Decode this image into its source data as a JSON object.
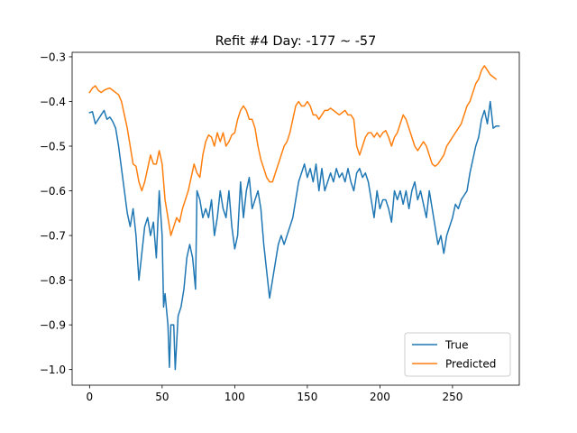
{
  "chart_data": {
    "type": "line",
    "title": "Refit #4 Day: -177 ~ -57",
    "xlabel": "",
    "ylabel": "",
    "xlim": [
      -12,
      296
    ],
    "ylim": [
      -1.035,
      -0.29
    ],
    "xticks": [
      0,
      50,
      100,
      150,
      200,
      250
    ],
    "yticks": [
      -1.0,
      -0.9,
      -0.8,
      -0.7,
      -0.6,
      -0.5,
      -0.4,
      -0.3
    ],
    "xtick_labels": [
      "0",
      "50",
      "100",
      "150",
      "200",
      "250"
    ],
    "ytick_labels": [
      "−1.0",
      "−0.9",
      "−0.8",
      "−0.7",
      "−0.6",
      "−0.5",
      "−0.4",
      "−0.3"
    ],
    "grid": false,
    "legend_position": "lower-right",
    "series": [
      {
        "name": "True",
        "color": "#1f77b4",
        "points": [
          [
            0,
            -0.425
          ],
          [
            2,
            -0.423
          ],
          [
            4,
            -0.45
          ],
          [
            6,
            -0.44
          ],
          [
            8,
            -0.43
          ],
          [
            10,
            -0.42
          ],
          [
            12,
            -0.44
          ],
          [
            14,
            -0.435
          ],
          [
            16,
            -0.445
          ],
          [
            18,
            -0.46
          ],
          [
            20,
            -0.5
          ],
          [
            22,
            -0.55
          ],
          [
            24,
            -0.6
          ],
          [
            26,
            -0.65
          ],
          [
            28,
            -0.68
          ],
          [
            30,
            -0.64
          ],
          [
            32,
            -0.7
          ],
          [
            34,
            -0.8
          ],
          [
            36,
            -0.74
          ],
          [
            38,
            -0.68
          ],
          [
            40,
            -0.66
          ],
          [
            42,
            -0.7
          ],
          [
            44,
            -0.67
          ],
          [
            46,
            -0.75
          ],
          [
            48,
            -0.6
          ],
          [
            50,
            -0.7
          ],
          [
            51,
            -0.86
          ],
          [
            52,
            -0.83
          ],
          [
            54,
            -0.9
          ],
          [
            55,
            -0.995
          ],
          [
            56,
            -0.9
          ],
          [
            58,
            -0.9
          ],
          [
            59,
            -1.0
          ],
          [
            61,
            -0.88
          ],
          [
            63,
            -0.86
          ],
          [
            65,
            -0.82
          ],
          [
            67,
            -0.75
          ],
          [
            69,
            -0.72
          ],
          [
            71,
            -0.75
          ],
          [
            73,
            -0.82
          ],
          [
            74,
            -0.6
          ],
          [
            76,
            -0.62
          ],
          [
            78,
            -0.66
          ],
          [
            80,
            -0.64
          ],
          [
            82,
            -0.66
          ],
          [
            84,
            -0.62
          ],
          [
            86,
            -0.7
          ],
          [
            88,
            -0.66
          ],
          [
            90,
            -0.6
          ],
          [
            92,
            -0.64
          ],
          [
            94,
            -0.66
          ],
          [
            96,
            -0.6
          ],
          [
            98,
            -0.68
          ],
          [
            100,
            -0.73
          ],
          [
            102,
            -0.7
          ],
          [
            104,
            -0.58
          ],
          [
            106,
            -0.66
          ],
          [
            108,
            -0.6
          ],
          [
            110,
            -0.57
          ],
          [
            112,
            -0.64
          ],
          [
            114,
            -0.62
          ],
          [
            116,
            -0.6
          ],
          [
            118,
            -0.64
          ],
          [
            120,
            -0.72
          ],
          [
            122,
            -0.78
          ],
          [
            124,
            -0.84
          ],
          [
            126,
            -0.8
          ],
          [
            128,
            -0.76
          ],
          [
            130,
            -0.72
          ],
          [
            132,
            -0.7
          ],
          [
            134,
            -0.72
          ],
          [
            136,
            -0.7
          ],
          [
            138,
            -0.68
          ],
          [
            140,
            -0.66
          ],
          [
            142,
            -0.62
          ],
          [
            144,
            -0.58
          ],
          [
            146,
            -0.56
          ],
          [
            148,
            -0.54
          ],
          [
            150,
            -0.57
          ],
          [
            152,
            -0.55
          ],
          [
            154,
            -0.58
          ],
          [
            156,
            -0.54
          ],
          [
            158,
            -0.6
          ],
          [
            160,
            -0.55
          ],
          [
            162,
            -0.6
          ],
          [
            164,
            -0.58
          ],
          [
            166,
            -0.56
          ],
          [
            168,
            -0.58
          ],
          [
            170,
            -0.55
          ],
          [
            172,
            -0.57
          ],
          [
            174,
            -0.56
          ],
          [
            176,
            -0.58
          ],
          [
            178,
            -0.55
          ],
          [
            180,
            -0.58
          ],
          [
            182,
            -0.6
          ],
          [
            184,
            -0.56
          ],
          [
            186,
            -0.55
          ],
          [
            188,
            -0.57
          ],
          [
            190,
            -0.56
          ],
          [
            192,
            -0.58
          ],
          [
            194,
            -0.62
          ],
          [
            196,
            -0.66
          ],
          [
            198,
            -0.6
          ],
          [
            200,
            -0.64
          ],
          [
            202,
            -0.62
          ],
          [
            204,
            -0.62
          ],
          [
            206,
            -0.64
          ],
          [
            208,
            -0.67
          ],
          [
            210,
            -0.6
          ],
          [
            212,
            -0.62
          ],
          [
            214,
            -0.6
          ],
          [
            216,
            -0.63
          ],
          [
            218,
            -0.6
          ],
          [
            220,
            -0.64
          ],
          [
            222,
            -0.6
          ],
          [
            224,
            -0.58
          ],
          [
            226,
            -0.62
          ],
          [
            228,
            -0.6
          ],
          [
            230,
            -0.63
          ],
          [
            232,
            -0.66
          ],
          [
            234,
            -0.6
          ],
          [
            236,
            -0.64
          ],
          [
            238,
            -0.68
          ],
          [
            240,
            -0.72
          ],
          [
            242,
            -0.7
          ],
          [
            244,
            -0.74
          ],
          [
            246,
            -0.7
          ],
          [
            248,
            -0.68
          ],
          [
            250,
            -0.66
          ],
          [
            252,
            -0.63
          ],
          [
            254,
            -0.64
          ],
          [
            256,
            -0.62
          ],
          [
            258,
            -0.61
          ],
          [
            260,
            -0.6
          ],
          [
            262,
            -0.56
          ],
          [
            264,
            -0.53
          ],
          [
            266,
            -0.5
          ],
          [
            268,
            -0.48
          ],
          [
            270,
            -0.44
          ],
          [
            272,
            -0.42
          ],
          [
            274,
            -0.45
          ],
          [
            276,
            -0.4
          ],
          [
            278,
            -0.46
          ],
          [
            280,
            -0.455
          ],
          [
            282,
            -0.455
          ]
        ]
      },
      {
        "name": "Predicted",
        "color": "#ff7f0e",
        "points": [
          [
            0,
            -0.38
          ],
          [
            2,
            -0.37
          ],
          [
            4,
            -0.365
          ],
          [
            6,
            -0.375
          ],
          [
            8,
            -0.38
          ],
          [
            10,
            -0.375
          ],
          [
            12,
            -0.372
          ],
          [
            14,
            -0.37
          ],
          [
            16,
            -0.375
          ],
          [
            18,
            -0.38
          ],
          [
            20,
            -0.385
          ],
          [
            22,
            -0.4
          ],
          [
            24,
            -0.43
          ],
          [
            26,
            -0.46
          ],
          [
            28,
            -0.5
          ],
          [
            30,
            -0.54
          ],
          [
            32,
            -0.545
          ],
          [
            34,
            -0.58
          ],
          [
            36,
            -0.6
          ],
          [
            38,
            -0.58
          ],
          [
            40,
            -0.55
          ],
          [
            42,
            -0.52
          ],
          [
            44,
            -0.54
          ],
          [
            46,
            -0.54
          ],
          [
            48,
            -0.51
          ],
          [
            50,
            -0.54
          ],
          [
            52,
            -0.62
          ],
          [
            54,
            -0.66
          ],
          [
            56,
            -0.7
          ],
          [
            58,
            -0.68
          ],
          [
            60,
            -0.66
          ],
          [
            62,
            -0.67
          ],
          [
            64,
            -0.64
          ],
          [
            66,
            -0.62
          ],
          [
            68,
            -0.6
          ],
          [
            70,
            -0.57
          ],
          [
            72,
            -0.54
          ],
          [
            74,
            -0.56
          ],
          [
            76,
            -0.57
          ],
          [
            78,
            -0.52
          ],
          [
            80,
            -0.49
          ],
          [
            82,
            -0.475
          ],
          [
            84,
            -0.48
          ],
          [
            86,
            -0.5
          ],
          [
            88,
            -0.47
          ],
          [
            90,
            -0.49
          ],
          [
            92,
            -0.47
          ],
          [
            94,
            -0.5
          ],
          [
            96,
            -0.49
          ],
          [
            98,
            -0.475
          ],
          [
            100,
            -0.47
          ],
          [
            102,
            -0.44
          ],
          [
            104,
            -0.42
          ],
          [
            106,
            -0.41
          ],
          [
            108,
            -0.42
          ],
          [
            110,
            -0.44
          ],
          [
            112,
            -0.44
          ],
          [
            114,
            -0.46
          ],
          [
            116,
            -0.5
          ],
          [
            118,
            -0.53
          ],
          [
            120,
            -0.55
          ],
          [
            122,
            -0.57
          ],
          [
            124,
            -0.58
          ],
          [
            126,
            -0.58
          ],
          [
            128,
            -0.56
          ],
          [
            130,
            -0.54
          ],
          [
            132,
            -0.52
          ],
          [
            134,
            -0.5
          ],
          [
            136,
            -0.49
          ],
          [
            138,
            -0.47
          ],
          [
            140,
            -0.44
          ],
          [
            142,
            -0.41
          ],
          [
            144,
            -0.4
          ],
          [
            146,
            -0.41
          ],
          [
            148,
            -0.41
          ],
          [
            150,
            -0.4
          ],
          [
            152,
            -0.41
          ],
          [
            154,
            -0.43
          ],
          [
            156,
            -0.43
          ],
          [
            158,
            -0.44
          ],
          [
            160,
            -0.43
          ],
          [
            162,
            -0.42
          ],
          [
            164,
            -0.42
          ],
          [
            166,
            -0.415
          ],
          [
            168,
            -0.42
          ],
          [
            170,
            -0.425
          ],
          [
            172,
            -0.43
          ],
          [
            174,
            -0.425
          ],
          [
            176,
            -0.42
          ],
          [
            178,
            -0.43
          ],
          [
            180,
            -0.43
          ],
          [
            182,
            -0.44
          ],
          [
            184,
            -0.5
          ],
          [
            186,
            -0.52
          ],
          [
            188,
            -0.5
          ],
          [
            190,
            -0.48
          ],
          [
            192,
            -0.47
          ],
          [
            194,
            -0.47
          ],
          [
            196,
            -0.48
          ],
          [
            198,
            -0.47
          ],
          [
            200,
            -0.48
          ],
          [
            202,
            -0.47
          ],
          [
            204,
            -0.465
          ],
          [
            206,
            -0.48
          ],
          [
            208,
            -0.5
          ],
          [
            210,
            -0.48
          ],
          [
            212,
            -0.47
          ],
          [
            214,
            -0.45
          ],
          [
            216,
            -0.43
          ],
          [
            218,
            -0.44
          ],
          [
            220,
            -0.46
          ],
          [
            222,
            -0.48
          ],
          [
            224,
            -0.5
          ],
          [
            226,
            -0.51
          ],
          [
            228,
            -0.5
          ],
          [
            230,
            -0.49
          ],
          [
            232,
            -0.5
          ],
          [
            234,
            -0.52
          ],
          [
            236,
            -0.54
          ],
          [
            238,
            -0.545
          ],
          [
            240,
            -0.54
          ],
          [
            242,
            -0.53
          ],
          [
            244,
            -0.52
          ],
          [
            246,
            -0.5
          ],
          [
            248,
            -0.49
          ],
          [
            250,
            -0.48
          ],
          [
            252,
            -0.47
          ],
          [
            254,
            -0.46
          ],
          [
            256,
            -0.45
          ],
          [
            258,
            -0.43
          ],
          [
            260,
            -0.41
          ],
          [
            262,
            -0.4
          ],
          [
            264,
            -0.38
          ],
          [
            266,
            -0.36
          ],
          [
            268,
            -0.35
          ],
          [
            270,
            -0.33
          ],
          [
            272,
            -0.32
          ],
          [
            274,
            -0.33
          ],
          [
            276,
            -0.34
          ],
          [
            278,
            -0.345
          ],
          [
            280,
            -0.35
          ]
        ]
      }
    ]
  }
}
